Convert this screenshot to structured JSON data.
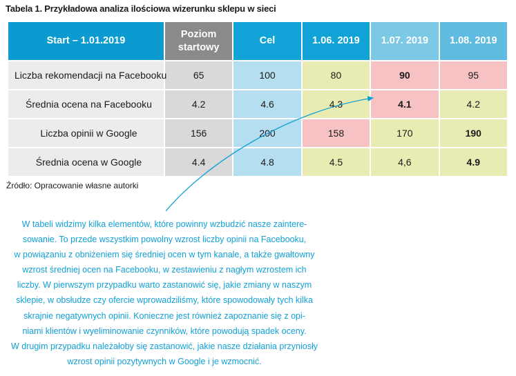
{
  "title": "Tabela 1. Przykładowa analiza ilościowa wizerunku sklepu w sieci",
  "table": {
    "headers": [
      "Start – 1.01.2019",
      "Poziom startowy",
      "Cel",
      "1.06. 2019",
      "1.07. 2019",
      "1.08. 2019"
    ],
    "rows": [
      {
        "label": "Liczba rekomendacji na Facebooku",
        "values": [
          "65",
          "100",
          "80",
          "90",
          "95"
        ]
      },
      {
        "label": "Średnia ocena na Facebooku",
        "values": [
          "4.2",
          "4.6",
          "4.3",
          "4.1",
          "4.2"
        ]
      },
      {
        "label": "Liczba opinii w Google",
        "values": [
          "156",
          "200",
          "158",
          "170",
          "190"
        ]
      },
      {
        "label": "Średnia ocena w Google",
        "values": [
          "4.4",
          "4.8",
          "4.5",
          "4,6",
          "4.9"
        ]
      }
    ]
  },
  "colors": {
    "header_accent": "#0b9bd0",
    "header_base": "#8a8a8a",
    "cell_gray": "#d9d9d9",
    "cell_blue": "#b5def0",
    "cell_yellow": "#e9ecb2",
    "cell_pink": "#f6c2c4",
    "comment_text": "#11a0d6"
  },
  "source": "Źródło: Opracowanie własne autorki",
  "comment_lines": [
    "W tabeli widzimy kilka elementów, które powinny wzbudzić nasze zaintere-",
    "sowanie. To przede wszystkim powolny wzrost liczby opinii na Facebooku,",
    "w powiązaniu z obniżeniem się średniej ocen w tym kanale, a także gwałtowny",
    "wzrost średniej ocen na Facebooku, w zestawieniu z nagłym wzrostem ich",
    "liczby. W pierwszym przypadku warto zastanowić się, jakie zmiany w naszym",
    "sklepie, w obsłudze czy ofercie wprowadziliśmy, które spowodowały tych kilka",
    "skrajnie negatywnych opinii. Konieczne jest również zapoznanie się z opi-",
    "niami klientów i wyeliminowanie czynników, które powodują spadek oceny.",
    "W drugim przypadku należałoby się zastanowić, jakie nasze działania przyniosły",
    "wzrost opinii pozytywnych w Google i je wzmocnić."
  ]
}
